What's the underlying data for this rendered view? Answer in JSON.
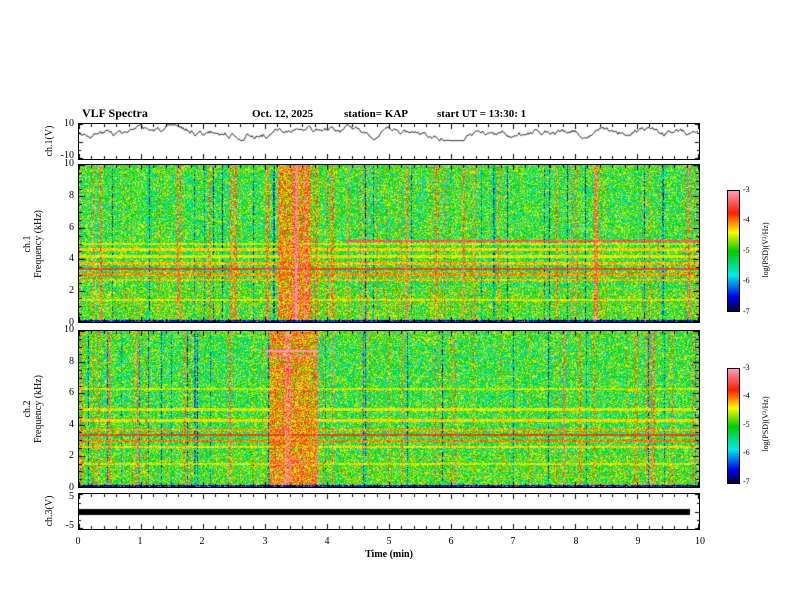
{
  "header": {
    "title": "VLF Spectra",
    "date": "Oct. 12, 2025",
    "station": "station= KAP",
    "start_ut": "start UT =   13:30: 1"
  },
  "xaxis": {
    "label": "Time (min)",
    "ticks": [
      "0",
      "1",
      "2",
      "3",
      "4",
      "5",
      "6",
      "7",
      "8",
      "9",
      "10"
    ]
  },
  "colorbar": {
    "label": "log(PSD)(V²/Hz)",
    "ticks": [
      "-3",
      "-4",
      "-5",
      "-6",
      "-7"
    ]
  },
  "panels": {
    "ch1_wave": {
      "ylabel": "ch.1(V)",
      "yticks": [
        "10",
        "-10"
      ]
    },
    "ch1_spec": {
      "ylabel_line1": "ch.1",
      "ylabel_line2": "Frequency (kHz)",
      "yticks": [
        "10",
        "8",
        "6",
        "4",
        "2",
        "0"
      ]
    },
    "ch2_spec": {
      "ylabel_line1": "ch.2",
      "ylabel_line2": "Frequency (kHz)",
      "yticks": [
        "10",
        "8",
        "6",
        "4",
        "2",
        "0"
      ]
    },
    "ch3_wave": {
      "ylabel": "ch.3(V)",
      "yticks": [
        "5",
        "-5"
      ]
    }
  },
  "chart_data": [
    {
      "type": "line",
      "panel": "ch1-waveform",
      "ylabel": "ch.1(V)",
      "xlim": [
        0,
        10
      ],
      "ylim": [
        -10,
        10
      ],
      "yticks": [
        10,
        -10
      ],
      "center": 5,
      "seed": 3,
      "summary": "dense black noisy voltage trace fluctuating around +5 V with roughly +/-3 V excursions across the full 10 minutes"
    },
    {
      "type": "heatmap",
      "panel": "ch1-spectrogram",
      "ylabel": "Frequency (kHz)",
      "xlim": [
        0,
        10
      ],
      "ylim": [
        0,
        10
      ],
      "yticks": [
        10,
        8,
        6,
        4,
        2,
        0
      ],
      "value_range": [
        -7,
        -3
      ],
      "background_level": -5.05,
      "seed": 7,
      "event_band_min": [
        3.2,
        3.75
      ],
      "tone_lines_khz": [
        {
          "f": 1.45,
          "b": 0.55
        },
        {
          "f": 2.7,
          "b": 0.8
        },
        {
          "f": 3.05,
          "b": 0.9
        },
        {
          "f": 3.4,
          "b": 1.25
        },
        {
          "f": 3.75,
          "b": 0.8
        },
        {
          "f": 4.2,
          "b": 0.6
        },
        {
          "f": 4.65,
          "b": 0.7
        },
        {
          "f": 5.2,
          "b": 1.45,
          "x0": 4.3,
          "x1": 10
        },
        {
          "f": 5.0,
          "b": 0.5
        }
      ],
      "summary": "green/yellow broadband noise with many red vertical sferic streaks, horizontal tone lines near 2.7-5.2 kHz, an intense red/yellow event band near 3.2-3.75 min, dark edge at 0 kHz"
    },
    {
      "type": "heatmap",
      "panel": "ch2-spectrogram",
      "ylabel": "Frequency (kHz)",
      "xlim": [
        0,
        10
      ],
      "ylim": [
        0,
        10
      ],
      "yticks": [
        10,
        8,
        6,
        4,
        2,
        0
      ],
      "value_range": [
        -7,
        -3
      ],
      "background_level": -5.05,
      "seed": 13,
      "event_band_min": [
        3.05,
        3.85
      ],
      "tone_lines_khz": [
        {
          "f": 1.5,
          "b": 0.5
        },
        {
          "f": 2.6,
          "b": 0.7
        },
        {
          "f": 3.0,
          "b": 0.95
        },
        {
          "f": 3.35,
          "b": 1.2
        },
        {
          "f": 3.7,
          "b": 0.85
        },
        {
          "f": 4.3,
          "b": 0.65
        },
        {
          "f": 5.0,
          "b": 0.55
        },
        {
          "f": 8.75,
          "b": 1.9,
          "x0": 3.0,
          "x1": 3.85
        },
        {
          "f": 8.45,
          "b": 1.6,
          "x0": 3.0,
          "x1": 3.85
        },
        {
          "f": 6.3,
          "b": 0.45
        }
      ],
      "summary": "similar broadband noise spectrogram; strong red patches near 8.5-9 kHz during the 3-3.9 min event band, red tone lines near 3-4 kHz"
    },
    {
      "type": "line",
      "panel": "ch3-waveform",
      "ylabel": "ch.3(V)",
      "xlim": [
        0,
        10
      ],
      "ylim": [
        -5,
        5
      ],
      "yticks": [
        5,
        -5
      ],
      "summary": "saturated flat thick black band at 0 V spanning 0 to ~9.85 min"
    }
  ]
}
